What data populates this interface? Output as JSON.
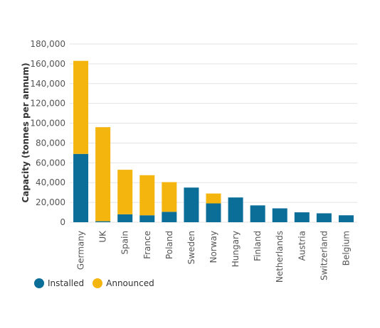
{
  "chart_data": {
    "type": "bar",
    "stacked": true,
    "title": "",
    "xlabel": "",
    "ylabel": "Capacity (tonnes per annum)",
    "ylim": [
      0,
      180000
    ],
    "yticks": [
      0,
      20000,
      40000,
      60000,
      80000,
      100000,
      120000,
      140000,
      160000,
      180000
    ],
    "ytick_labels": [
      "0",
      "20,000",
      "40,000",
      "60,000",
      "80,000",
      "100,000",
      "120,000",
      "140,000",
      "160,000",
      "180,000"
    ],
    "grid": true,
    "legend_position": "bottom-left",
    "categories": [
      "Germany",
      "UK",
      "Spain",
      "France",
      "Poland",
      "Sweden",
      "Norway",
      "Hungary",
      "Finland",
      "Netherlands",
      "Austria",
      "Switzerland",
      "Belgium"
    ],
    "series": [
      {
        "name": "Installed",
        "color": "#0b6e99",
        "values": [
          69000,
          1000,
          8000,
          7000,
          10500,
          35000,
          19000,
          25000,
          17000,
          14000,
          10000,
          9000,
          7000
        ]
      },
      {
        "name": "Announced",
        "color": "#f5b50f",
        "values": [
          94000,
          95000,
          45000,
          40500,
          30000,
          0,
          10000,
          0,
          0,
          0,
          0,
          0,
          0
        ]
      }
    ]
  }
}
